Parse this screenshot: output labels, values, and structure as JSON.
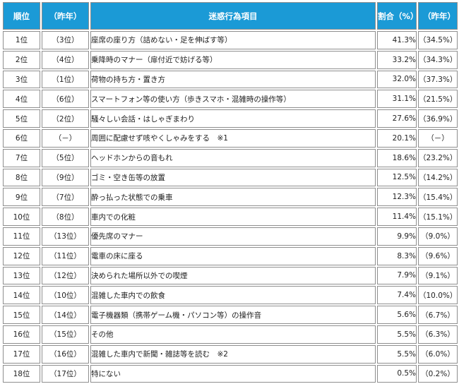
{
  "header": {
    "rank": "順位",
    "prev_rank": "（昨年）",
    "item": "迷惑行為項目",
    "pct": "割合（%）",
    "prev_pct": "（昨年）"
  },
  "rows": [
    {
      "rank": "1位",
      "prev": "（3位）",
      "item": "座席の座り方（詰めない・足を伸ばす等）",
      "pct": "41.3%",
      "prev_pct": "（34.5%）"
    },
    {
      "rank": "2位",
      "prev": "（4位）",
      "item": "乗降時のマナー（扉付近で妨げる等）",
      "pct": "33.2%",
      "prev_pct": "（34.3%）"
    },
    {
      "rank": "3位",
      "prev": "（1位）",
      "item": "荷物の持ち方・置き方",
      "pct": "32.0%",
      "prev_pct": "（37.3%）"
    },
    {
      "rank": "4位",
      "prev": "（6位）",
      "item": "スマートフォン等の使い方（歩きスマホ・混雑時の操作等）",
      "pct": "31.1%",
      "prev_pct": "（21.5%）"
    },
    {
      "rank": "5位",
      "prev": "（2位）",
      "item": "騒々しい会話・はしゃぎまわり",
      "pct": "27.6%",
      "prev_pct": "（36.9%）"
    },
    {
      "rank": "6位",
      "prev": "（－）",
      "item": "周囲に配慮せず咳やくしゃみをする　※1",
      "pct": "20.1%",
      "prev_pct": "（－）"
    },
    {
      "rank": "7位",
      "prev": "（5位）",
      "item": "ヘッドホンからの音もれ",
      "pct": "18.6%",
      "prev_pct": "（23.2%）"
    },
    {
      "rank": "8位",
      "prev": "（9位）",
      "item": "ゴミ・空き缶等の放置",
      "pct": "12.5%",
      "prev_pct": "（14.2%）"
    },
    {
      "rank": "9位",
      "prev": "（7位）",
      "item": "酔っ払った状態での乗車",
      "pct": "12.3%",
      "prev_pct": "（15.4%）"
    },
    {
      "rank": "10位",
      "prev": "（8位）",
      "item": "車内での化粧",
      "pct": "11.4%",
      "prev_pct": "（15.1%）"
    },
    {
      "rank": "11位",
      "prev": "（13位）",
      "item": "優先席のマナー",
      "pct": "9.9%",
      "prev_pct": "（9.0%）"
    },
    {
      "rank": "12位",
      "prev": "（11位）",
      "item": "電車の床に座る",
      "pct": "8.3%",
      "prev_pct": "（9.6%）"
    },
    {
      "rank": "13位",
      "prev": "（12位）",
      "item": "決められた場所以外での喫煙",
      "pct": "7.9%",
      "prev_pct": "（9.1%）"
    },
    {
      "rank": "14位",
      "prev": "（10位）",
      "item": "混雑した車内での飲食",
      "pct": "7.4%",
      "prev_pct": "（10.0%）"
    },
    {
      "rank": "15位",
      "prev": "（14位）",
      "item": "電子機器類（携帯ゲーム機・パソコン等）の操作音",
      "pct": "5.6%",
      "prev_pct": "（6.7%）"
    },
    {
      "rank": "16位",
      "prev": "（15位）",
      "item": "その他",
      "pct": "5.5%",
      "prev_pct": "（6.3%）"
    },
    {
      "rank": "17位",
      "prev": "（16位）",
      "item": "混雑した車内で新聞・雑誌等を読む　※2",
      "pct": "5.5%",
      "prev_pct": "（6.0%）"
    },
    {
      "rank": "18位",
      "prev": "（17位）",
      "item": "特にない",
      "pct": "0.5%",
      "prev_pct": "（0.2%）"
    }
  ]
}
